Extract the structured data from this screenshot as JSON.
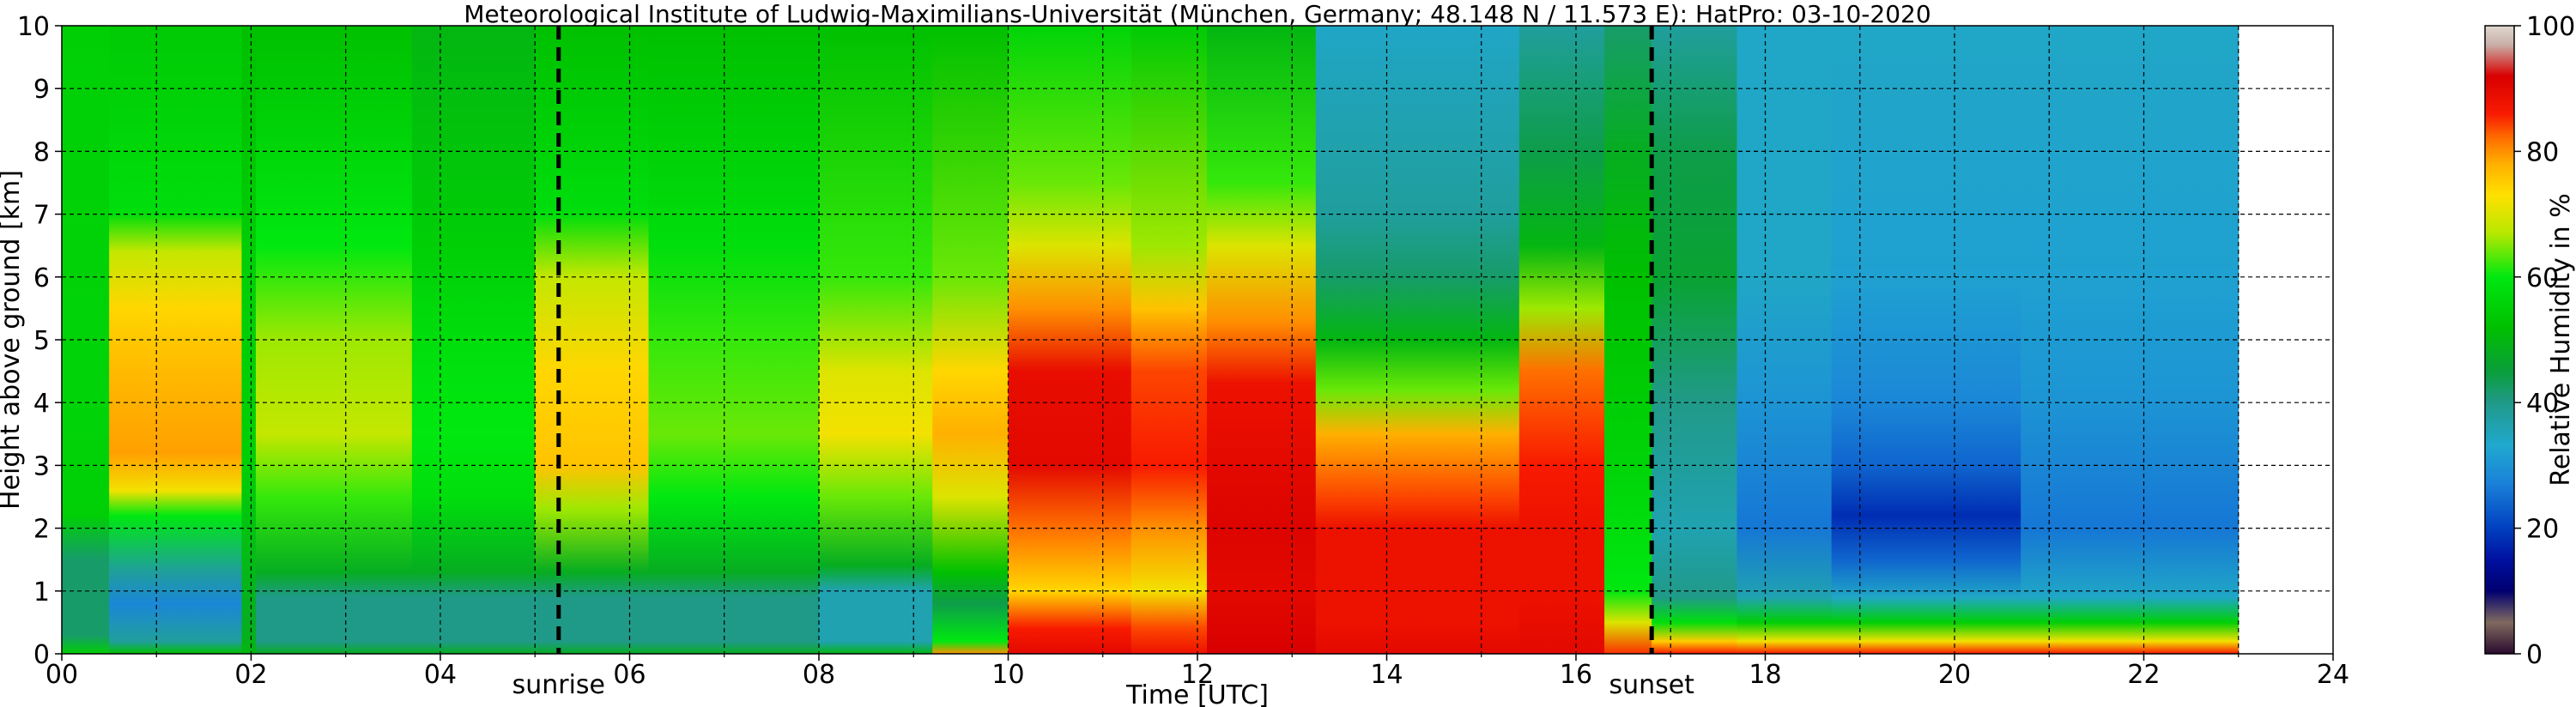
{
  "chart_data": {
    "type": "heatmap",
    "title": "Meteorological Institute of Ludwig-Maximilians-Universität (München, Germany; 48.148 N / 11.573 E):    HatPro: 03-10-2020",
    "xlabel": "Time [UTC]",
    "ylabel": "Height above ground [km]",
    "xlim": [
      0,
      24
    ],
    "ylim": [
      0,
      10
    ],
    "xticks": [
      "00",
      "02",
      "04",
      "06",
      "08",
      "10",
      "12",
      "14",
      "16",
      "18",
      "20",
      "22",
      "24"
    ],
    "yticks": [
      "0",
      "1",
      "2",
      "3",
      "4",
      "5",
      "6",
      "7",
      "8",
      "9",
      "10"
    ],
    "grid": true,
    "data_end_hour": 23,
    "markers": [
      {
        "label": "sunrise",
        "hour": 5.25
      },
      {
        "label": "sunset",
        "hour": 16.8
      }
    ],
    "colorbar": {
      "label": "Relative Humidity in %",
      "range": [
        0,
        100
      ],
      "ticks": [
        "0",
        "20",
        "40",
        "60",
        "80",
        "100"
      ],
      "stops": [
        {
          "value": 0,
          "color": "#2a0a2e"
        },
        {
          "value": 5,
          "color": "#806a60"
        },
        {
          "value": 10,
          "color": "#000070"
        },
        {
          "value": 15,
          "color": "#0010a0"
        },
        {
          "value": 20,
          "color": "#0040c0"
        },
        {
          "value": 27,
          "color": "#1a80d8"
        },
        {
          "value": 33,
          "color": "#20a8d0"
        },
        {
          "value": 40,
          "color": "#209a88"
        },
        {
          "value": 45,
          "color": "#0a9e3a"
        },
        {
          "value": 52,
          "color": "#00c000"
        },
        {
          "value": 60,
          "color": "#00e810"
        },
        {
          "value": 67,
          "color": "#b8e800"
        },
        {
          "value": 73,
          "color": "#ffe000"
        },
        {
          "value": 78,
          "color": "#ffb000"
        },
        {
          "value": 82,
          "color": "#ff7000"
        },
        {
          "value": 86,
          "color": "#f81a00"
        },
        {
          "value": 92,
          "color": "#d80000"
        },
        {
          "value": 97,
          "color": "#c8b0a8"
        },
        {
          "value": 100,
          "color": "#e0d8d0"
        }
      ]
    },
    "time_segments": [
      {
        "start": 0.0,
        "end": 0.5,
        "profile": [
          [
            0,
            55
          ],
          [
            0.3,
            42
          ],
          [
            1.5,
            42
          ],
          [
            2.2,
            55
          ],
          [
            4,
            56
          ],
          [
            10,
            55
          ]
        ]
      },
      {
        "start": 0.5,
        "end": 1.9,
        "profile": [
          [
            0,
            52
          ],
          [
            0.2,
            38
          ],
          [
            0.8,
            28
          ],
          [
            1.3,
            38
          ],
          [
            2.2,
            60
          ],
          [
            2.6,
            72
          ],
          [
            3.2,
            79
          ],
          [
            4.5,
            77
          ],
          [
            5.5,
            74
          ],
          [
            6.4,
            68
          ],
          [
            7,
            58
          ],
          [
            10,
            54
          ]
        ]
      },
      {
        "start": 1.9,
        "end": 2.05,
        "profile": [
          [
            0,
            50
          ],
          [
            0.5,
            48
          ],
          [
            3,
            55
          ],
          [
            6,
            55
          ],
          [
            10,
            52
          ]
        ]
      },
      {
        "start": 2.05,
        "end": 3.7,
        "profile": [
          [
            0,
            48
          ],
          [
            0.2,
            40
          ],
          [
            0.9,
            40
          ],
          [
            1.3,
            48
          ],
          [
            2.5,
            62
          ],
          [
            3.5,
            68
          ],
          [
            5,
            66
          ],
          [
            6.5,
            60
          ],
          [
            10,
            52
          ]
        ]
      },
      {
        "start": 3.7,
        "end": 5.0,
        "profile": [
          [
            0,
            48
          ],
          [
            0.2,
            40
          ],
          [
            0.9,
            40
          ],
          [
            1.3,
            48
          ],
          [
            2.5,
            58
          ],
          [
            3.5,
            60
          ],
          [
            5,
            58
          ],
          [
            6.5,
            55
          ],
          [
            10,
            50
          ]
        ]
      },
      {
        "start": 5.0,
        "end": 6.2,
        "profile": [
          [
            0,
            48
          ],
          [
            0.2,
            40
          ],
          [
            0.9,
            40
          ],
          [
            1.3,
            48
          ],
          [
            2.3,
            66
          ],
          [
            3,
            76
          ],
          [
            4.5,
            74
          ],
          [
            6,
            68
          ],
          [
            7,
            58
          ],
          [
            10,
            52
          ]
        ]
      },
      {
        "start": 6.2,
        "end": 8.0,
        "profile": [
          [
            0,
            48
          ],
          [
            0.2,
            40
          ],
          [
            0.9,
            40
          ],
          [
            1.3,
            48
          ],
          [
            2.5,
            60
          ],
          [
            3.5,
            64
          ],
          [
            5,
            62
          ],
          [
            6.5,
            58
          ],
          [
            10,
            52
          ]
        ]
      },
      {
        "start": 8.0,
        "end": 9.2,
        "profile": [
          [
            0,
            50
          ],
          [
            0.2,
            36
          ],
          [
            1,
            36
          ],
          [
            1.4,
            48
          ],
          [
            2.5,
            64
          ],
          [
            3.5,
            72
          ],
          [
            4.5,
            70
          ],
          [
            6,
            62
          ],
          [
            10,
            52
          ]
        ]
      },
      {
        "start": 9.2,
        "end": 10.0,
        "profile": [
          [
            0,
            80
          ],
          [
            0.2,
            60
          ],
          [
            0.8,
            44
          ],
          [
            1.3,
            52
          ],
          [
            2.5,
            70
          ],
          [
            3.5,
            78
          ],
          [
            4.5,
            74
          ],
          [
            6,
            64
          ],
          [
            10,
            52
          ]
        ]
      },
      {
        "start": 10.0,
        "end": 11.3,
        "profile": [
          [
            0,
            90
          ],
          [
            0.4,
            86
          ],
          [
            1,
            74
          ],
          [
            2,
            82
          ],
          [
            3,
            90
          ],
          [
            4.5,
            89
          ],
          [
            5.5,
            80
          ],
          [
            6.5,
            70
          ],
          [
            7.5,
            64
          ],
          [
            10,
            56
          ]
        ]
      },
      {
        "start": 11.3,
        "end": 12.1,
        "profile": [
          [
            0,
            88
          ],
          [
            0.4,
            84
          ],
          [
            1,
            72
          ],
          [
            2,
            80
          ],
          [
            3,
            86
          ],
          [
            4.5,
            84
          ],
          [
            5.5,
            76
          ],
          [
            6.5,
            66
          ],
          [
            10,
            54
          ]
        ]
      },
      {
        "start": 12.1,
        "end": 13.25,
        "profile": [
          [
            0,
            92
          ],
          [
            1,
            90
          ],
          [
            2,
            91
          ],
          [
            3,
            90
          ],
          [
            4.3,
            88
          ],
          [
            5.3,
            80
          ],
          [
            6.5,
            70
          ],
          [
            7.5,
            62
          ],
          [
            10,
            50
          ]
        ]
      },
      {
        "start": 13.25,
        "end": 15.4,
        "profile": [
          [
            0,
            90
          ],
          [
            0.5,
            88
          ],
          [
            2,
            88
          ],
          [
            2.5,
            84
          ],
          [
            3.5,
            78
          ],
          [
            4.2,
            64
          ],
          [
            5,
            50
          ],
          [
            6,
            42
          ],
          [
            7,
            38
          ],
          [
            10,
            34
          ]
        ]
      },
      {
        "start": 15.4,
        "end": 16.3,
        "profile": [
          [
            0,
            90
          ],
          [
            1,
            88
          ],
          [
            2,
            88
          ],
          [
            3,
            86
          ],
          [
            4.5,
            82
          ],
          [
            5.5,
            66
          ],
          [
            6.5,
            50
          ],
          [
            8,
            44
          ],
          [
            10,
            38
          ]
        ]
      },
      {
        "start": 16.3,
        "end": 16.8,
        "profile": [
          [
            0,
            85
          ],
          [
            0.5,
            70
          ],
          [
            1,
            60
          ],
          [
            3,
            56
          ],
          [
            6,
            52
          ],
          [
            8,
            48
          ],
          [
            10,
            42
          ]
        ]
      },
      {
        "start": 16.8,
        "end": 17.7,
        "profile": [
          [
            0,
            86
          ],
          [
            0.2,
            75
          ],
          [
            0.5,
            58
          ],
          [
            0.9,
            40
          ],
          [
            2,
            36
          ],
          [
            4,
            40
          ],
          [
            6,
            46
          ],
          [
            8,
            44
          ],
          [
            10,
            38
          ]
        ]
      },
      {
        "start": 17.7,
        "end": 18.7,
        "profile": [
          [
            0,
            86
          ],
          [
            0.2,
            72
          ],
          [
            0.5,
            55
          ],
          [
            0.9,
            36
          ],
          [
            2,
            26
          ],
          [
            4,
            30
          ],
          [
            6,
            34
          ],
          [
            8,
            34
          ],
          [
            10,
            34
          ]
        ]
      },
      {
        "start": 18.7,
        "end": 20.7,
        "profile": [
          [
            0,
            86
          ],
          [
            0.2,
            72
          ],
          [
            0.5,
            55
          ],
          [
            0.9,
            34
          ],
          [
            1.5,
            24
          ],
          [
            2.2,
            18
          ],
          [
            3,
            24
          ],
          [
            4,
            28
          ],
          [
            6,
            32
          ],
          [
            10,
            34
          ]
        ]
      },
      {
        "start": 20.7,
        "end": 23.0,
        "profile": [
          [
            0,
            86
          ],
          [
            0.2,
            72
          ],
          [
            0.5,
            55
          ],
          [
            0.9,
            34
          ],
          [
            2,
            26
          ],
          [
            4,
            30
          ],
          [
            6,
            32
          ],
          [
            10,
            34
          ]
        ]
      }
    ]
  }
}
